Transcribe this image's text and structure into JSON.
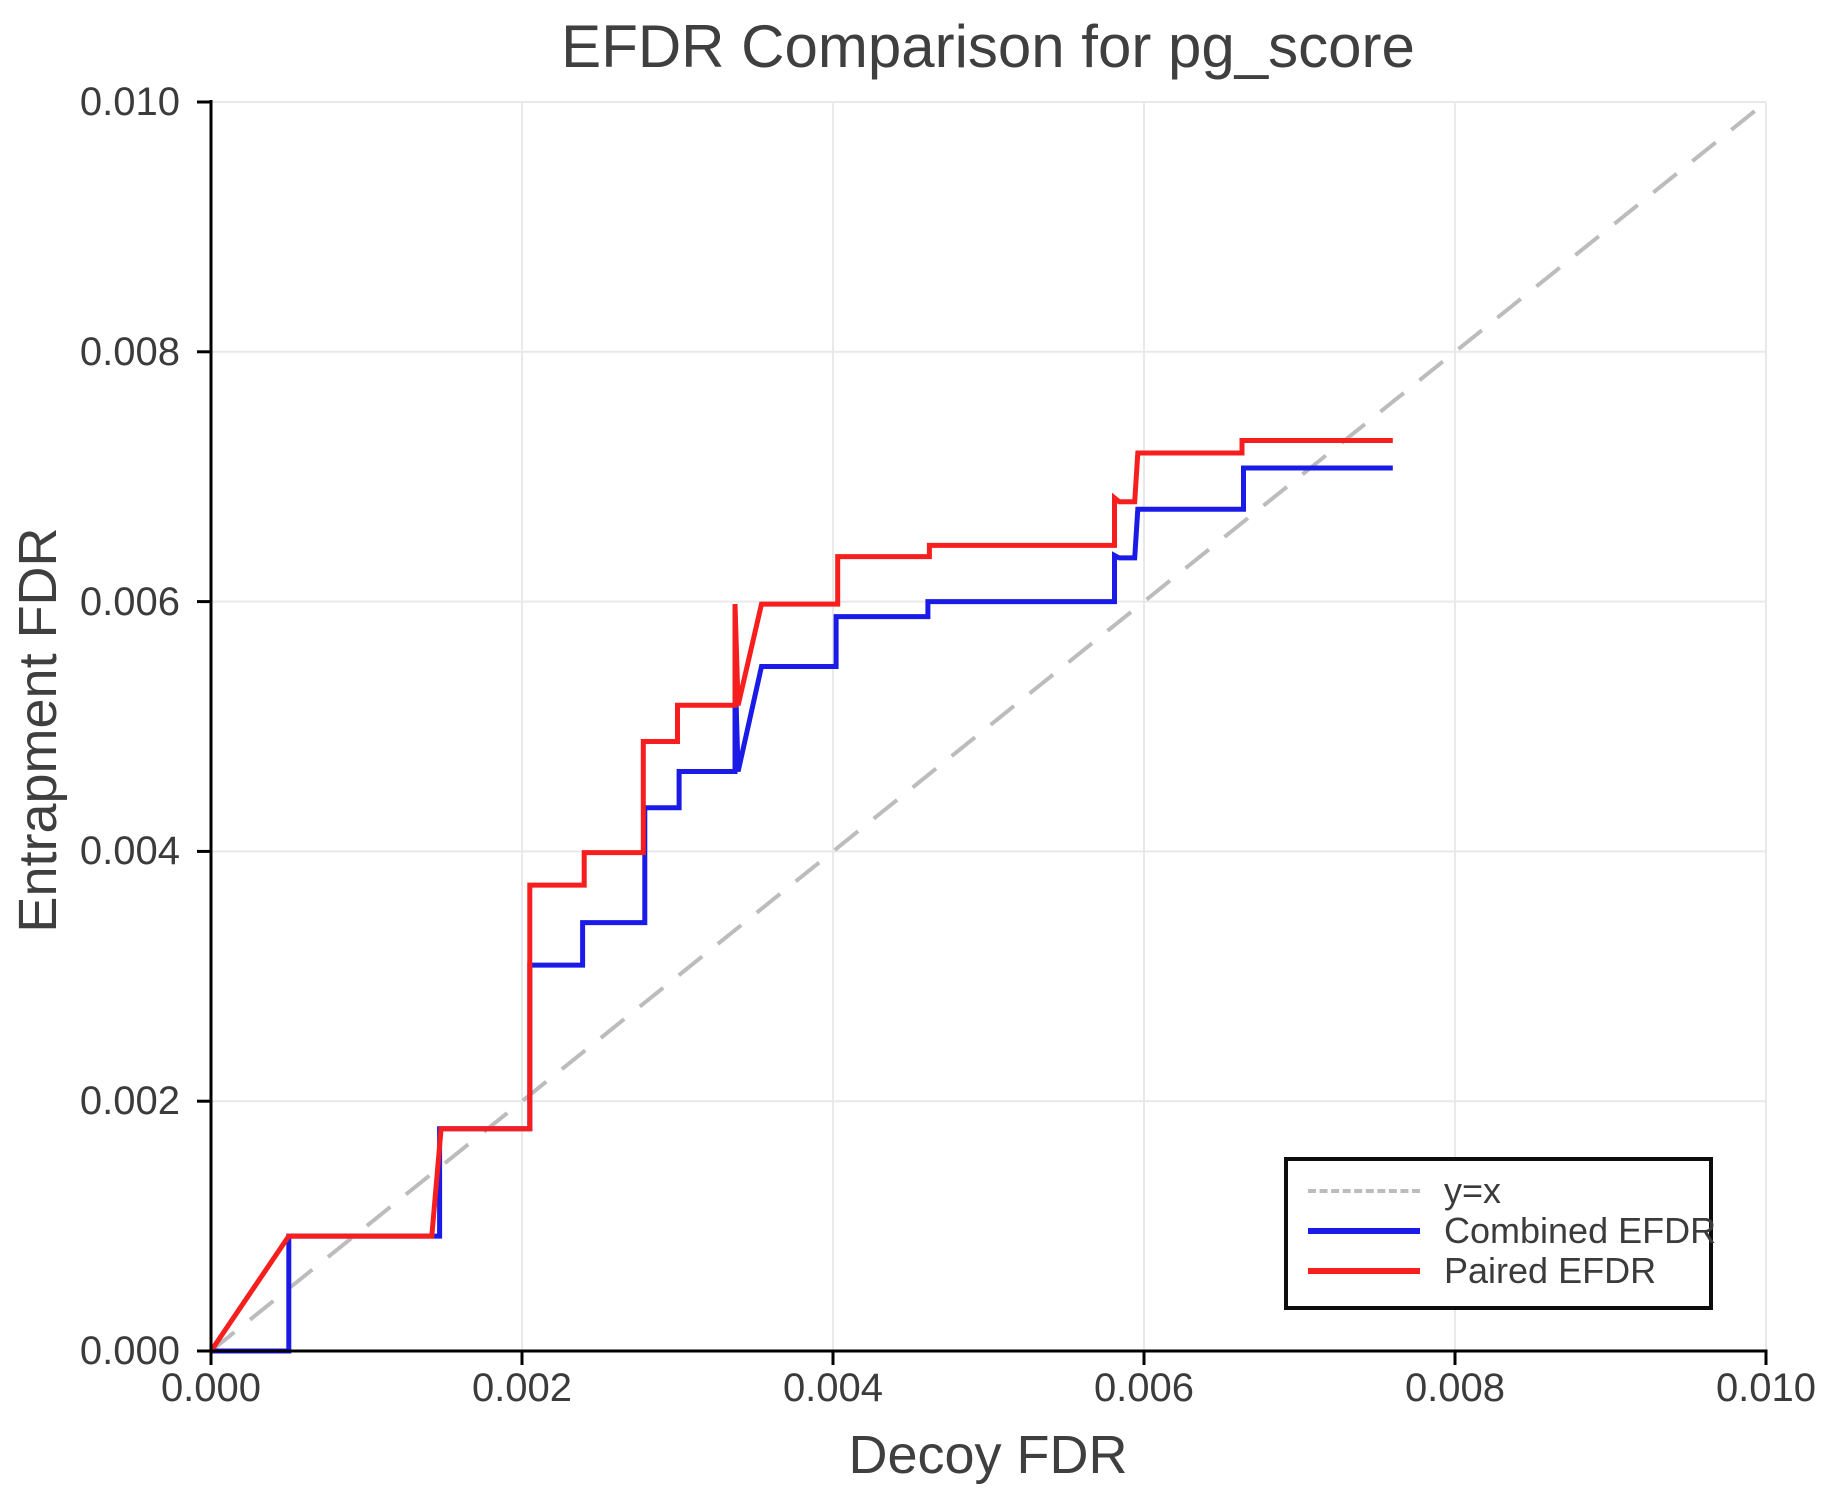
{
  "title": "EFDR Comparison for pg_score",
  "axes": {
    "xlabel": "Decoy FDR",
    "ylabel": "Entrapment FDR",
    "x_tick_labels": [
      "0.000",
      "0.002",
      "0.004",
      "0.006",
      "0.008",
      "0.010"
    ],
    "y_tick_labels": [
      "0.000",
      "0.002",
      "0.004",
      "0.006",
      "0.008",
      "0.010"
    ],
    "x_tick_values": [
      0,
      0.002,
      0.004,
      0.006,
      0.008,
      0.01
    ],
    "y_tick_values": [
      0,
      0.002,
      0.004,
      0.006,
      0.008,
      0.01
    ],
    "xlim": [
      0,
      0.01
    ],
    "ylim": [
      0,
      0.01
    ]
  },
  "colors": {
    "combined": "#1b1be8",
    "paired": "#f71e1e",
    "reference": "#bcbcbc",
    "grid": "#e9e9e9",
    "spine": "#000000",
    "text": "#3b3b3b"
  },
  "legend": {
    "entries": [
      {
        "label": "y=x",
        "style": "dashed",
        "color": "#bcbcbc"
      },
      {
        "label": "Combined EFDR",
        "style": "solid",
        "color": "#1b1be8"
      },
      {
        "label": "Paired EFDR",
        "style": "solid",
        "color": "#f71e1e"
      }
    ]
  },
  "chart_data": {
    "type": "line",
    "title": "EFDR Comparison for pg_score",
    "xlabel": "Decoy FDR",
    "ylabel": "Entrapment FDR",
    "xlim": [
      0,
      0.01
    ],
    "ylim": [
      0,
      0.01
    ],
    "grid": true,
    "legend_position": "lower right",
    "reference_line": {
      "name": "y=x",
      "style": "dashed",
      "color": "#bcbcbc",
      "points": [
        [
          0,
          0
        ],
        [
          0.01,
          0.01
        ]
      ]
    },
    "series": [
      {
        "name": "Combined EFDR",
        "color": "#1b1be8",
        "points": [
          [
            0,
            0
          ],
          [
            0.0005,
            0
          ],
          [
            0.0005,
            0.00092
          ],
          [
            0.00147,
            0.00092
          ],
          [
            0.00147,
            0.00178
          ],
          [
            0.00205,
            0.00178
          ],
          [
            0.00205,
            0.00309
          ],
          [
            0.00239,
            0.00309
          ],
          [
            0.00239,
            0.00343
          ],
          [
            0.00279,
            0.00343
          ],
          [
            0.00279,
            0.00435
          ],
          [
            0.00301,
            0.00435
          ],
          [
            0.00301,
            0.00464
          ],
          [
            0.00337,
            0.00464
          ],
          [
            0.00337,
            0.00549
          ],
          [
            0.00339,
            0.00464
          ],
          [
            0.00354,
            0.00548
          ],
          [
            0.00402,
            0.00548
          ],
          [
            0.00402,
            0.00588
          ],
          [
            0.00461,
            0.00588
          ],
          [
            0.00461,
            0.006
          ],
          [
            0.00581,
            0.006
          ],
          [
            0.00581,
            0.00637
          ],
          [
            0.00584,
            0.00635
          ],
          [
            0.00594,
            0.00635
          ],
          [
            0.00596,
            0.00674
          ],
          [
            0.00664,
            0.00674
          ],
          [
            0.00664,
            0.00707
          ],
          [
            0.0076,
            0.00707
          ]
        ]
      },
      {
        "name": "Paired EFDR",
        "color": "#f71e1e",
        "points": [
          [
            0,
            0
          ],
          [
            0.0005,
            0.00092
          ],
          [
            0.00142,
            0.00092
          ],
          [
            0.00148,
            0.00178
          ],
          [
            0.00205,
            0.00178
          ],
          [
            0.00205,
            0.00373
          ],
          [
            0.0024,
            0.00373
          ],
          [
            0.0024,
            0.00399
          ],
          [
            0.00278,
            0.00399
          ],
          [
            0.00278,
            0.00488
          ],
          [
            0.003,
            0.00488
          ],
          [
            0.003,
            0.00517
          ],
          [
            0.00337,
            0.00517
          ],
          [
            0.00337,
            0.00598
          ],
          [
            0.00339,
            0.00517
          ],
          [
            0.00354,
            0.00598
          ],
          [
            0.00403,
            0.00598
          ],
          [
            0.00403,
            0.00636
          ],
          [
            0.00462,
            0.00636
          ],
          [
            0.00462,
            0.00645
          ],
          [
            0.00581,
            0.00645
          ],
          [
            0.00581,
            0.00683
          ],
          [
            0.00584,
            0.0068
          ],
          [
            0.00594,
            0.0068
          ],
          [
            0.00596,
            0.00719
          ],
          [
            0.00663,
            0.00719
          ],
          [
            0.00663,
            0.00729
          ],
          [
            0.0076,
            0.00729
          ]
        ]
      }
    ]
  }
}
